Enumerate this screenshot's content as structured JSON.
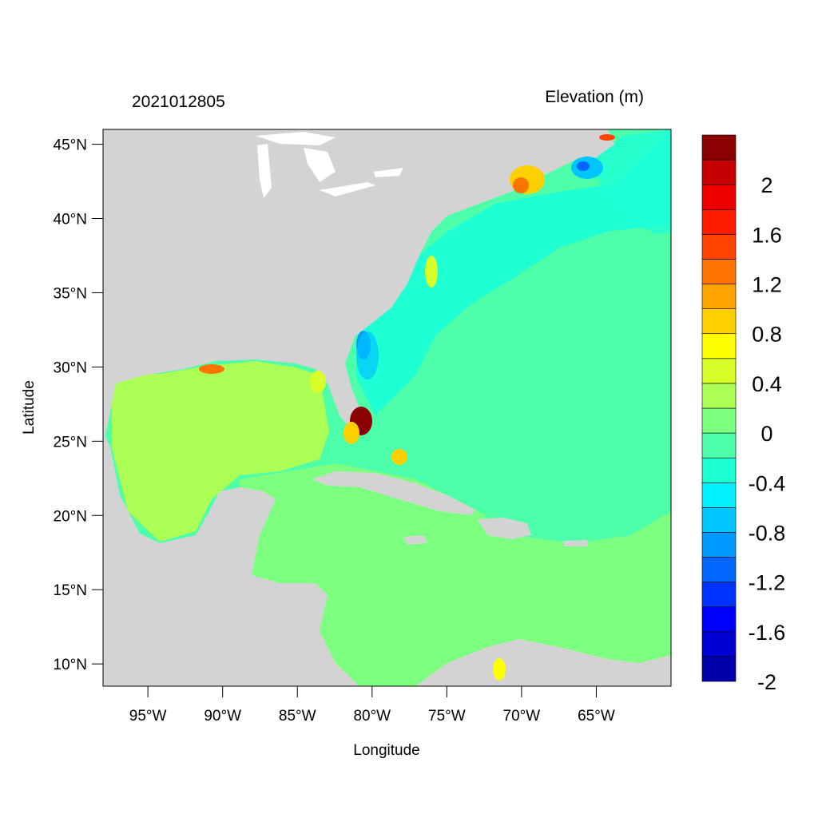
{
  "header": {
    "timestamp": "2021012805",
    "variable_title": "Elevation (m)"
  },
  "map": {
    "xlabel": "Longitude",
    "ylabel": "Latitude",
    "lon_range": [
      -98,
      -60
    ],
    "lat_range": [
      8.5,
      46
    ],
    "lon_ticks": [
      {
        "value": -95,
        "label": "95°W"
      },
      {
        "value": -90,
        "label": "90°W"
      },
      {
        "value": -85,
        "label": "85°W"
      },
      {
        "value": -80,
        "label": "80°W"
      },
      {
        "value": -75,
        "label": "75°W"
      },
      {
        "value": -70,
        "label": "70°W"
      },
      {
        "value": -65,
        "label": "65°W"
      }
    ],
    "lat_ticks": [
      {
        "value": 45,
        "label": "45°N"
      },
      {
        "value": 40,
        "label": "40°N"
      },
      {
        "value": 35,
        "label": "35°N"
      },
      {
        "value": 30,
        "label": "30°N"
      },
      {
        "value": 25,
        "label": "25°N"
      },
      {
        "value": 20,
        "label": "20°N"
      },
      {
        "value": 15,
        "label": "15°N"
      },
      {
        "value": 10,
        "label": "10°N"
      }
    ],
    "land_color": "#d3d3d3"
  },
  "colorbar": {
    "colors": [
      "#0000aa",
      "#0000d5",
      "#0000ff",
      "#0033ff",
      "#0066ff",
      "#0099ff",
      "#00c5ff",
      "#00f0ff",
      "#1effd4",
      "#4dffa8",
      "#7dff7f",
      "#abff55",
      "#d9ff2b",
      "#ffff00",
      "#ffd000",
      "#ffa300",
      "#ff7300",
      "#ff4400",
      "#ff1b00",
      "#ee0000",
      "#c40000",
      "#8b0000"
    ],
    "labels": [
      {
        "boundary": 20,
        "text": "2"
      },
      {
        "boundary": 18,
        "text": "1.6"
      },
      {
        "boundary": 16,
        "text": "1.2"
      },
      {
        "boundary": 14,
        "text": "0.8"
      },
      {
        "boundary": 12,
        "text": "0.4"
      },
      {
        "boundary": 10,
        "text": "0"
      },
      {
        "boundary": 8,
        "text": "-0.4"
      },
      {
        "boundary": 6,
        "text": "-0.8"
      },
      {
        "boundary": 4,
        "text": "-1.2"
      },
      {
        "boundary": 2,
        "text": "-1.6"
      },
      {
        "boundary": 0,
        "text": "-2"
      }
    ]
  }
}
